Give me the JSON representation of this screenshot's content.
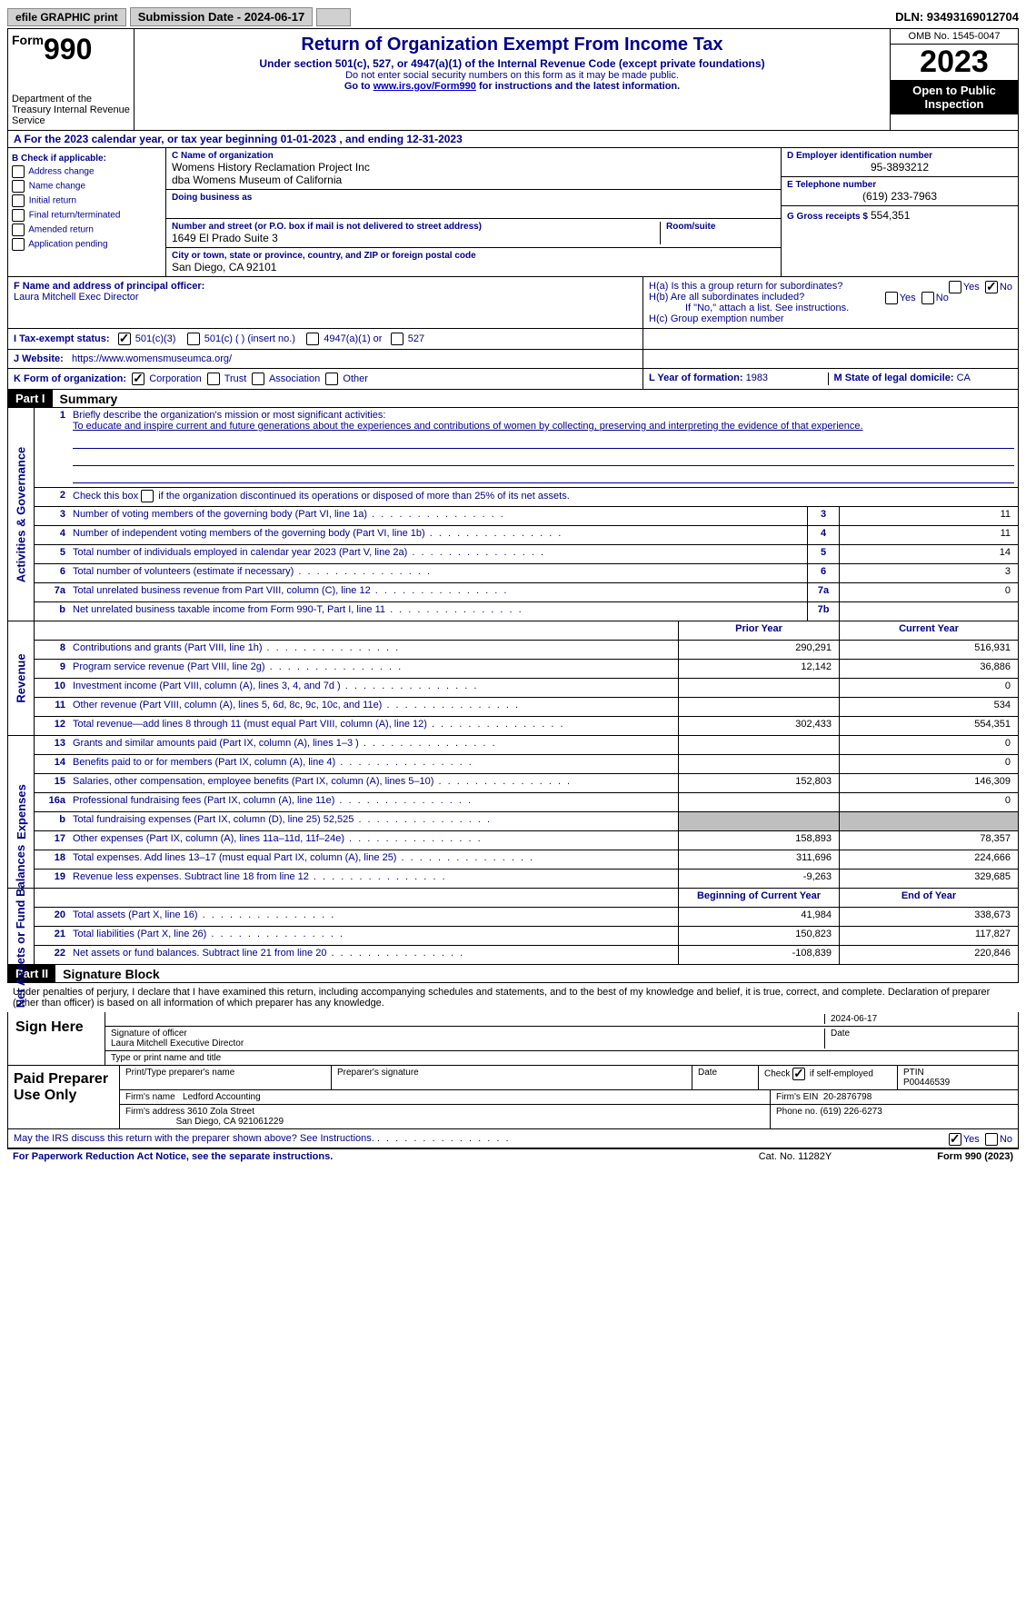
{
  "colors": {
    "link": "#0000cc",
    "label": "#00008b",
    "black": "#000000",
    "gray_cell": "#bfbfbf",
    "button_bg": "#d0d0d0"
  },
  "top_bar": {
    "efile": "efile GRAPHIC print",
    "sub_label": "Submission Date - 2024-06-17",
    "dln": "DLN: 93493169012704"
  },
  "header": {
    "form_word": "Form",
    "form_num": "990",
    "title": "Return of Organization Exempt From Income Tax",
    "sub1": "Under section 501(c), 527, or 4947(a)(1) of the Internal Revenue Code (except private foundations)",
    "sub2": "Do not enter social security numbers on this form as it may be made public.",
    "sub3_pre": "Go to ",
    "sub3_link": "www.irs.gov/Form990",
    "sub3_post": " for instructions and the latest information.",
    "omb": "OMB No. 1545-0047",
    "year": "2023",
    "open_public": "Open to Public Inspection",
    "dept": "Department of the Treasury Internal Revenue Service"
  },
  "row_a": "A  For the 2023 calendar year, or tax year beginning 01-01-2023    , and ending 12-31-2023",
  "col_b": {
    "header": "B Check if applicable:",
    "items": [
      "Address change",
      "Name change",
      "Initial return",
      "Final return/terminated",
      "Amended return",
      "Application pending"
    ]
  },
  "col_c": {
    "name_lbl": "C Name of organization",
    "name1": "Womens History Reclamation Project Inc",
    "name2": "dba Womens Museum of California",
    "dba_lbl": "Doing business as",
    "addr_lbl": "Number and street (or P.O. box if mail is not delivered to street address)",
    "room_lbl": "Room/suite",
    "addr": "1649 El Prado Suite 3",
    "city_lbl": "City or town, state or province, country, and ZIP or foreign postal code",
    "city": "San Diego, CA  92101"
  },
  "col_d": {
    "ein_lbl": "D Employer identification number",
    "ein": "95-3893212",
    "phone_lbl": "E Telephone number",
    "phone": "(619) 233-7963",
    "gross_lbl": "G Gross receipts $",
    "gross": "554,351"
  },
  "row_f": {
    "lbl": "F Name and address of principal officer:",
    "val": "Laura Mitchell Exec Director"
  },
  "row_h": {
    "ha": "H(a)  Is this a group return for subordinates?",
    "hb": "H(b)  Are all subordinates included?",
    "hb_note": "If \"No,\" attach a list. See instructions.",
    "hc": "H(c)  Group exemption number",
    "yes": "Yes",
    "no": "No"
  },
  "row_i": {
    "lbl": "I     Tax-exempt status:",
    "opt1": "501(c)(3)",
    "opt2": "501(c) (  ) (insert no.)",
    "opt3": "4947(a)(1) or",
    "opt4": "527"
  },
  "row_j": {
    "lbl": "J    Website:",
    "val": "https://www.womensmuseumca.org/"
  },
  "row_k": {
    "lbl": "K Form of organization:",
    "opts": [
      "Corporation",
      "Trust",
      "Association",
      "Other"
    ]
  },
  "row_l": {
    "lbl": "L Year of formation:",
    "val": "1983"
  },
  "row_m": {
    "lbl": "M State of legal domicile:",
    "val": "CA"
  },
  "part1": {
    "header": "Part I",
    "title": "Summary",
    "line1_lbl": "Briefly describe the organization's mission or most significant activities:",
    "line1_val": "To educate and inspire current and future generations about the experiences and contributions of women by collecting, preserving and interpreting the evidence of that experience.",
    "line2": "Check this box          if the organization discontinued its operations or disposed of more than 25% of its net assets.",
    "sections": {
      "activities": {
        "label": "Activities & Governance",
        "rows": [
          {
            "n": "3",
            "d": "Number of voting members of the governing body (Part VI, line 1a)",
            "box": "3",
            "v": "11"
          },
          {
            "n": "4",
            "d": "Number of independent voting members of the governing body (Part VI, line 1b)",
            "box": "4",
            "v": "11"
          },
          {
            "n": "5",
            "d": "Total number of individuals employed in calendar year 2023 (Part V, line 2a)",
            "box": "5",
            "v": "14"
          },
          {
            "n": "6",
            "d": "Total number of volunteers (estimate if necessary)",
            "box": "6",
            "v": "3"
          },
          {
            "n": "7a",
            "d": "Total unrelated business revenue from Part VIII, column (C), line 12",
            "box": "7a",
            "v": "0"
          },
          {
            "n": "b",
            "d": "Net unrelated business taxable income from Form 990-T, Part I, line 11",
            "box": "7b",
            "v": ""
          }
        ]
      },
      "revenue": {
        "label": "Revenue",
        "head_prior": "Prior Year",
        "head_curr": "Current Year",
        "rows": [
          {
            "n": "8",
            "d": "Contributions and grants (Part VIII, line 1h)",
            "p": "290,291",
            "c": "516,931"
          },
          {
            "n": "9",
            "d": "Program service revenue (Part VIII, line 2g)",
            "p": "12,142",
            "c": "36,886"
          },
          {
            "n": "10",
            "d": "Investment income (Part VIII, column (A), lines 3, 4, and 7d )",
            "p": "",
            "c": "0"
          },
          {
            "n": "11",
            "d": "Other revenue (Part VIII, column (A), lines 5, 6d, 8c, 9c, 10c, and 11e)",
            "p": "",
            "c": "534"
          },
          {
            "n": "12",
            "d": "Total revenue—add lines 8 through 11 (must equal Part VIII, column (A), line 12)",
            "p": "302,433",
            "c": "554,351"
          }
        ]
      },
      "expenses": {
        "label": "Expenses",
        "rows": [
          {
            "n": "13",
            "d": "Grants and similar amounts paid (Part IX, column (A), lines 1–3 )",
            "p": "",
            "c": "0"
          },
          {
            "n": "14",
            "d": "Benefits paid to or for members (Part IX, column (A), line 4)",
            "p": "",
            "c": "0"
          },
          {
            "n": "15",
            "d": "Salaries, other compensation, employee benefits (Part IX, column (A), lines 5–10)",
            "p": "152,803",
            "c": "146,309"
          },
          {
            "n": "16a",
            "d": "Professional fundraising fees (Part IX, column (A), line 11e)",
            "p": "",
            "c": "0"
          },
          {
            "n": "b",
            "d": "Total fundraising expenses (Part IX, column (D), line 25) 52,525",
            "p": "GRAY",
            "c": "GRAY"
          },
          {
            "n": "17",
            "d": "Other expenses (Part IX, column (A), lines 11a–11d, 11f–24e)",
            "p": "158,893",
            "c": "78,357"
          },
          {
            "n": "18",
            "d": "Total expenses. Add lines 13–17 (must equal Part IX, column (A), line 25)",
            "p": "311,696",
            "c": "224,666"
          },
          {
            "n": "19",
            "d": "Revenue less expenses. Subtract line 18 from line 12",
            "p": "-9,263",
            "c": "329,685"
          }
        ]
      },
      "netassets": {
        "label": "Net Assets or Fund Balances",
        "head_prior": "Beginning of Current Year",
        "head_curr": "End of Year",
        "rows": [
          {
            "n": "20",
            "d": "Total assets (Part X, line 16)",
            "p": "41,984",
            "c": "338,673"
          },
          {
            "n": "21",
            "d": "Total liabilities (Part X, line 26)",
            "p": "150,823",
            "c": "117,827"
          },
          {
            "n": "22",
            "d": "Net assets or fund balances. Subtract line 21 from line 20",
            "p": "-108,839",
            "c": "220,846"
          }
        ]
      }
    }
  },
  "part2": {
    "header": "Part II",
    "title": "Signature Block",
    "penalties": "Under penalties of perjury, I declare that I have examined this return, including accompanying schedules and statements, and to the best of my knowledge and belief, it is true, correct, and complete. Declaration of preparer (other than officer) is based on all information of which preparer has any knowledge.",
    "sign_here": "Sign Here",
    "sig_officer_lbl": "Signature of officer",
    "sig_date": "2024-06-17",
    "officer_name": "Laura Mitchell  Executive Director",
    "type_lbl": "Type or print name and title",
    "paid_prep": "Paid Preparer Use Only",
    "print_lbl": "Print/Type preparer's name",
    "prep_sig_lbl": "Preparer's signature",
    "date_lbl": "Date",
    "check_self": "Check          if self-employed",
    "ptin_lbl": "PTIN",
    "ptin": "P00446539",
    "firm_name_lbl": "Firm's name",
    "firm_name": "Ledford Accounting",
    "firm_ein_lbl": "Firm's EIN",
    "firm_ein": "20-2876798",
    "firm_addr_lbl": "Firm's address",
    "firm_addr1": "3610 Zola Street",
    "firm_addr2": "San Diego, CA  921061229",
    "phone_lbl": "Phone no.",
    "phone": "(619) 226-6273",
    "discuss": "May the IRS discuss this return with the preparer shown above? See Instructions.",
    "yes": "Yes",
    "no": "No"
  },
  "footer": {
    "f1": "For Paperwork Reduction Act Notice, see the separate instructions.",
    "f2": "Cat. No. 11282Y",
    "f3": "Form 990 (2023)"
  }
}
